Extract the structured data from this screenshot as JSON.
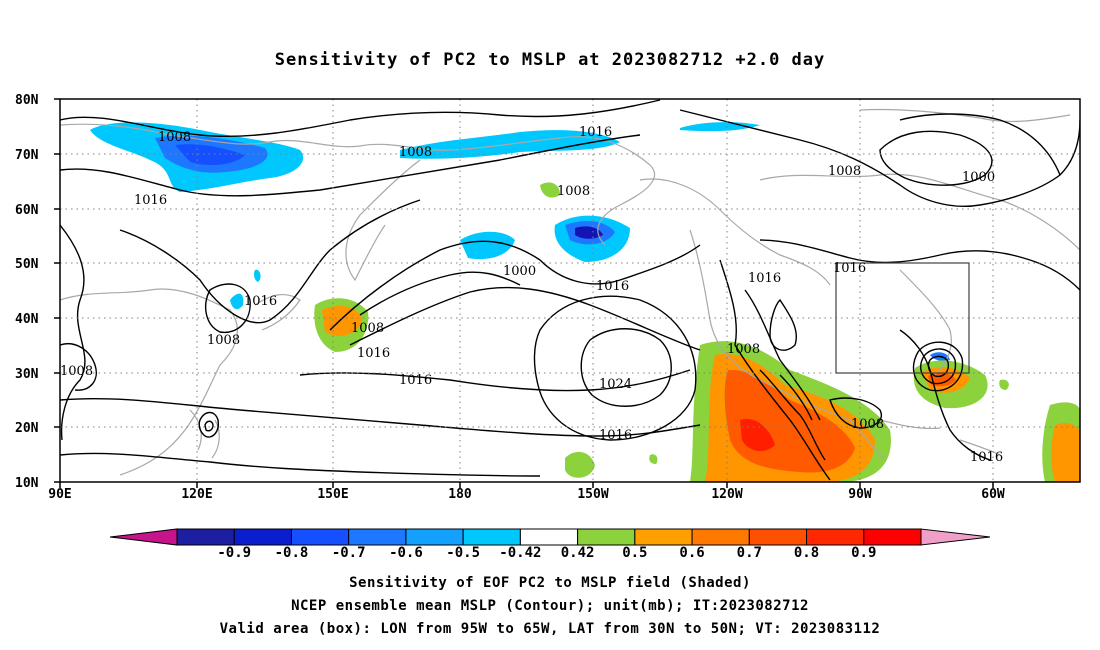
{
  "title": "Sensitivity of PC2 to MSLP at 2023082712 +2.0 day",
  "map": {
    "lon_range": [
      "90E",
      "50W"
    ],
    "lat_range": [
      "10N",
      "80N"
    ],
    "lat_ticks": [
      "80N",
      "70N",
      "60N",
      "50N",
      "40N",
      "30N",
      "20N",
      "10N"
    ],
    "lon_ticks": [
      "90E",
      "120E",
      "150E",
      "180",
      "150W",
      "120W",
      "90W",
      "60W"
    ],
    "gridlines": "dotted",
    "colors": {
      "coast": "#a8a8a8",
      "contour": "#000000",
      "neg_deep": "#1414b4",
      "neg_mid": "#2060ff",
      "neg_light": "#00b4ff",
      "pos_light": "#8cd23c",
      "pos_mid": "#ff9600",
      "pos_strong": "#ff5a00",
      "pos_deep": "#ff1e00"
    },
    "contour_labels": [
      "1008",
      "1016",
      "1008",
      "1016",
      "1008",
      "1000",
      "1016",
      "1008",
      "1016",
      "1000",
      "1016",
      "1008",
      "1016",
      "1008",
      "1016",
      "1024",
      "1016",
      "1008",
      "1008",
      "1016",
      "1008"
    ],
    "valid_box": {
      "lon": [
        "95W",
        "65W"
      ],
      "lat": [
        "30N",
        "50N"
      ]
    }
  },
  "colorbar": {
    "labels": [
      "-0.9",
      "-0.8",
      "-0.7",
      "-0.6",
      "-0.5",
      "-0.42",
      "0.42",
      "0.5",
      "0.6",
      "0.7",
      "0.8",
      "0.9"
    ],
    "colors": [
      "#c8148c",
      "#1e1ea0",
      "#0a1ecd",
      "#1450ff",
      "#1e78ff",
      "#14a0ff",
      "#00c8ff",
      "#ffffff",
      "#8cd23c",
      "#ffa000",
      "#ff7800",
      "#ff5000",
      "#ff2800",
      "#ff0000",
      "#f0a0c8"
    ]
  },
  "captions": [
    "Sensitivity of EOF PC2 to MSLP field (Shaded)",
    "NCEP ensemble mean MSLP (Contour); unit(mb); IT:2023082712",
    "Valid area (box): LON from 95W to 65W, LAT from 30N to 50N; VT: 2023083112"
  ]
}
